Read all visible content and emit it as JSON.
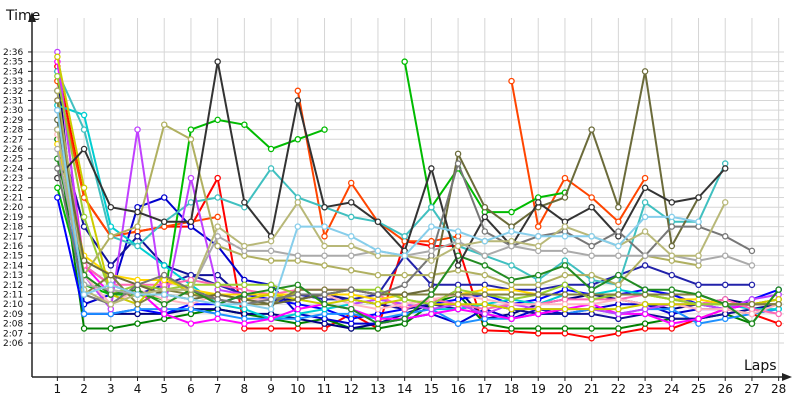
{
  "chart_data": {
    "type": "line",
    "ylabel": "Time",
    "xlabel": "Laps",
    "y_unit": "m:ss",
    "x": [
      1,
      2,
      3,
      4,
      5,
      6,
      7,
      8,
      9,
      10,
      11,
      12,
      13,
      14,
      15,
      16,
      17,
      18,
      19,
      20,
      21,
      22,
      23,
      24,
      25,
      26,
      27,
      28
    ],
    "xlim": [
      0.05,
      28.2
    ],
    "y_top": 159.5,
    "y_bottom": 122.5,
    "ytick_labels": [
      "2:06",
      "2:07",
      "2:08",
      "2:09",
      "2:10",
      "2:11",
      "2:12",
      "2:13",
      "2:14",
      "2:15",
      "2:16",
      "2:17",
      "2:18",
      "2:19",
      "2:20",
      "2:21",
      "2:22",
      "2:23",
      "2:24",
      "2:25",
      "2:26",
      "2:27",
      "2:28",
      "2:29",
      "2:30",
      "2:31",
      "2:32",
      "2:33",
      "2:34",
      "2:35",
      "2:36"
    ],
    "ytick_values": [
      126,
      127,
      128,
      129,
      130,
      131,
      132,
      133,
      134,
      135,
      136,
      137,
      138,
      139,
      140,
      141,
      142,
      143,
      144,
      145,
      146,
      147,
      148,
      149,
      150,
      151,
      152,
      153,
      154,
      155,
      156
    ],
    "grid": true,
    "series": [
      {
        "color": "#ff0000",
        "values": [
          154.5,
          141,
          137,
          137.5,
          138,
          138,
          143,
          127.5,
          127.5,
          127.5,
          127.5,
          129,
          127.5,
          136.5,
          136,
          136,
          127.3,
          127.2,
          127,
          127,
          126.5,
          127,
          127.5,
          127.5,
          128.5,
          129.5,
          129,
          128
        ]
      },
      {
        "color": "#ff4500",
        "values": [
          153,
          141,
          137,
          137.5,
          138,
          138.5,
          139,
          null,
          null,
          152,
          137,
          142.5,
          138.5,
          136.5,
          136.5,
          137,
          null,
          153,
          138,
          143,
          141,
          138.5,
          143,
          null,
          null,
          null,
          null,
          null
        ]
      },
      {
        "color": "#008000",
        "values": [
          147,
          127.5,
          127.5,
          128,
          128.5,
          129,
          129.5,
          129,
          128.5,
          128,
          128.5,
          127.5,
          127.5,
          128,
          130,
          131,
          128,
          127.5,
          127.5,
          127.5,
          127.5,
          127.5,
          128,
          128.5,
          128.5,
          129,
          128,
          131.5
        ]
      },
      {
        "color": "#00bb00",
        "values": [
          142,
          132,
          131,
          131,
          130.5,
          148,
          149,
          148.5,
          146,
          147,
          148,
          null,
          null,
          155,
          140,
          144,
          139.5,
          139.5,
          141,
          141.5,
          null,
          null,
          null,
          null,
          null,
          null,
          null,
          null
        ]
      },
      {
        "color": "#000080",
        "values": [
          154,
          129,
          129,
          129,
          129,
          129.5,
          129.5,
          129,
          129,
          128.5,
          128,
          127.5,
          128,
          129,
          130,
          131.5,
          128.5,
          129,
          130,
          130.5,
          131,
          130.5,
          130,
          129.5,
          130,
          130.5,
          130,
          130.5
        ]
      },
      {
        "color": "#0000cd",
        "values": [
          152,
          130,
          131,
          140,
          141,
          138,
          136,
          132.5,
          132,
          129,
          128.5,
          128,
          128,
          128.5,
          129,
          128,
          129.5,
          128.5,
          129.5,
          129,
          129.5,
          130,
          130,
          129,
          129.5,
          129.5,
          130,
          130
        ]
      },
      {
        "color": "#0000ff",
        "values": [
          141,
          129,
          129,
          129.5,
          129,
          130,
          130,
          131,
          130.5,
          130,
          129.5,
          128.5,
          129,
          129.5,
          130,
          130.5,
          131,
          130,
          130.5,
          131.5,
          131,
          131,
          131.5,
          131,
          130,
          129.5,
          130.5,
          131.5
        ]
      },
      {
        "color": "#1e90ff",
        "values": [
          149,
          129,
          129,
          129.5,
          129.5,
          129.5,
          129,
          128.5,
          128.5,
          128.5,
          129,
          129,
          128.5,
          129,
          129.5,
          128,
          128.5,
          128.5,
          129,
          129,
          129.5,
          129,
          129.5,
          129.5,
          128,
          128.5,
          129,
          129.5
        ]
      },
      {
        "color": "#111199",
        "values": [
          148,
          138,
          134,
          137,
          134,
          133,
          133,
          130.5,
          130.5,
          130.5,
          131,
          130.5,
          130,
          129.5,
          130,
          129.5,
          130,
          129.5,
          129,
          129,
          129,
          128.5,
          129,
          128.5,
          128.5,
          129,
          129.5,
          130
        ]
      },
      {
        "color": "#2222aa",
        "values": [
          150,
          134,
          132,
          131,
          132,
          133,
          132,
          131,
          131,
          131,
          130.5,
          130.5,
          131,
          135,
          132,
          132,
          132,
          131.5,
          131.5,
          132,
          132,
          133,
          134,
          133,
          132,
          132,
          132,
          null
        ]
      },
      {
        "color": "#00ced1",
        "values": [
          150.5,
          149.5,
          138,
          136,
          134,
          132,
          130,
          129.5,
          128.5,
          129,
          129.5,
          130,
          130.5,
          130,
          129.5,
          129.5,
          130,
          130.5,
          130,
          131,
          131,
          131.5,
          131,
          130.5,
          130,
          130,
          129.5,
          129.5
        ]
      },
      {
        "color": "#40c0c0",
        "values": [
          154,
          148,
          137,
          136,
          138.5,
          140.5,
          141,
          140,
          144,
          141,
          140,
          139,
          138.5,
          137,
          140,
          136,
          135,
          134,
          132.5,
          134.5,
          132.5,
          132,
          140.5,
          138.5,
          138.5,
          144.5,
          null,
          null
        ]
      },
      {
        "color": "#ff00ff",
        "values": [
          155,
          134,
          131,
          131.5,
          129,
          128,
          128.5,
          128,
          128.5,
          129.5,
          130,
          129.5,
          128.5,
          128.5,
          129,
          129.5,
          129,
          128.5,
          129,
          129.5,
          130,
          129,
          129,
          128,
          128.5,
          129.5,
          130,
          130
        ]
      },
      {
        "color": "#c040ff",
        "values": [
          156,
          133,
          129.5,
          148,
          129.5,
          143,
          131.5,
          131,
          131,
          131,
          131,
          130,
          130.5,
          130,
          129.5,
          130,
          129,
          130,
          129.5,
          129.5,
          129.5,
          129,
          129.5,
          130,
          130,
          129.5,
          130.5,
          131
        ]
      },
      {
        "color": "#ff69b4",
        "values": [
          151,
          134,
          132,
          132,
          132,
          132.5,
          132,
          131.5,
          131,
          131.5,
          131.5,
          131.5,
          131,
          129.5,
          130.5,
          130,
          129.5,
          130,
          130,
          130.5,
          130.5,
          130.5,
          131,
          130.5,
          130,
          130.5,
          129.5,
          129
        ]
      },
      {
        "color": "#ffb6c1",
        "values": [
          147.5,
          133,
          130,
          131.5,
          130.5,
          130,
          131,
          130.5,
          130.5,
          131,
          131,
          130,
          129.5,
          130,
          130.5,
          131,
          130.5,
          130,
          130,
          130,
          130,
          130.5,
          130,
          130,
          129.5,
          129.5,
          129,
          130
        ]
      },
      {
        "color": "#ffd700",
        "values": [
          146.5,
          135,
          133,
          132.5,
          132.5,
          131.5,
          131,
          131,
          131,
          131,
          131,
          131,
          130.5,
          131,
          131,
          131,
          131.5,
          131.5,
          131,
          131,
          131,
          131,
          131,
          130.5,
          130.5,
          130,
          130,
          130.5
        ]
      },
      {
        "color": "#cccc00",
        "values": [
          155.5,
          142,
          131,
          130,
          133,
          131,
          131,
          130.5,
          131,
          130.5,
          130,
          130.5,
          130,
          130.5,
          130,
          130,
          130,
          129.5,
          129.5,
          129.5,
          129.5,
          129.5,
          130,
          130,
          130,
          130,
          130,
          130.5
        ]
      },
      {
        "color": "#9acd32",
        "values": [
          153.5,
          139,
          131,
          132,
          131.5,
          132,
          132,
          132,
          132,
          131,
          131,
          131.5,
          131.5,
          130.5,
          130,
          131.5,
          131,
          130.5,
          131,
          132,
          130.5,
          131,
          131,
          130.5,
          130,
          130,
          130,
          130
        ]
      },
      {
        "color": "#b0b060",
        "values": [
          152,
          133,
          137,
          138,
          148.5,
          147,
          136,
          135,
          134.5,
          134.5,
          134,
          133.5,
          133,
          133,
          133,
          133.5,
          133,
          132,
          132,
          133,
          133,
          132,
          135,
          134.5,
          134,
          null,
          null,
          null
        ]
      },
      {
        "color": "#808040",
        "values": [
          151,
          131,
          133,
          130,
          131.5,
          131,
          130.5,
          130,
          130,
          131.5,
          131.5,
          131.5,
          131,
          131,
          131,
          131,
          131,
          131,
          131,
          131,
          131,
          131,
          131,
          131,
          131,
          130,
          130,
          130
        ]
      },
      {
        "color": "#6b6b3a",
        "values": [
          149,
          134.5,
          133,
          132,
          131,
          130.5,
          131,
          130.5,
          130,
          130.5,
          131,
          131.5,
          131,
          131,
          131.5,
          145.5,
          140,
          138,
          140,
          141,
          148,
          140,
          154,
          136,
          141,
          null,
          null,
          null
        ]
      },
      {
        "color": "#228b22",
        "values": [
          145,
          133,
          131,
          131.5,
          130,
          131.5,
          130,
          131,
          131.5,
          132,
          130,
          129.5,
          128,
          128.5,
          131,
          135,
          134,
          132.5,
          133,
          134,
          131.5,
          133,
          131.5,
          131.5,
          131,
          130,
          128,
          131.5
        ]
      },
      {
        "color": "#333333",
        "values": [
          143,
          146,
          140,
          139.5,
          138.5,
          138.5,
          155,
          140.5,
          137,
          151,
          140,
          140.5,
          138.5,
          135.5,
          144,
          134,
          139,
          136,
          140.5,
          138.5,
          140,
          137,
          142,
          140.5,
          141,
          144,
          null,
          null
        ]
      },
      {
        "color": "#777777",
        "values": [
          144,
          131,
          130,
          132,
          133,
          131.5,
          130.5,
          130,
          130.5,
          131,
          131,
          131.5,
          131,
          132,
          135,
          144.5,
          137.5,
          136,
          137,
          137.5,
          136,
          137.5,
          135,
          138,
          138,
          137,
          135.5,
          null
        ]
      },
      {
        "color": "#aaaaaa",
        "values": [
          146,
          132,
          131.5,
          131,
          131.5,
          131.5,
          137,
          135.5,
          135.5,
          135,
          135,
          135,
          135.5,
          135,
          135.5,
          136.5,
          135,
          136,
          135.5,
          135.5,
          135,
          135,
          135,
          135,
          134.5,
          135,
          134,
          null
        ]
      },
      {
        "color": "#b8b878",
        "values": [
          148,
          131.5,
          130,
          131,
          131.5,
          131.5,
          138,
          136,
          136.5,
          140.5,
          136,
          136,
          135,
          135,
          134.5,
          136,
          136.5,
          136.5,
          136,
          138,
          137,
          136,
          137.5,
          135,
          135,
          140.5,
          null,
          null
        ]
      },
      {
        "color": "#87ceeb",
        "values": [
          150,
          131,
          132,
          131,
          131,
          130.5,
          130,
          130,
          129.5,
          138,
          138,
          137,
          135.5,
          135,
          138,
          137.5,
          136.5,
          137.5,
          137,
          137,
          137,
          136,
          139,
          139,
          138.5,
          null,
          null,
          null
        ]
      }
    ]
  }
}
